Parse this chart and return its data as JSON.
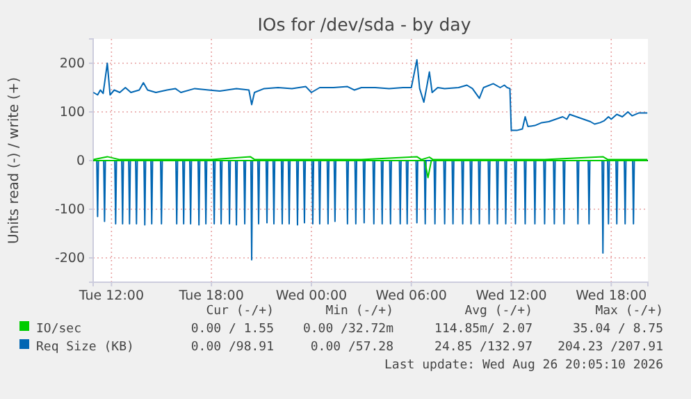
{
  "chart_data": {
    "type": "line",
    "title": "IOs for /dev/sda - by day",
    "ylabel": "Units read (-) / write (+)",
    "xlim": [
      "2026-08-25T10:54",
      "2026-08-26T20:12"
    ],
    "ylim": [
      -250,
      250
    ],
    "xticks": [
      {
        "value": "2026-08-25T12:00",
        "label": "Tue 12:00"
      },
      {
        "value": "2026-08-25T18:00",
        "label": "Tue 18:00"
      },
      {
        "value": "2026-08-26T00:00",
        "label": "Wed 00:00"
      },
      {
        "value": "2026-08-26T06:00",
        "label": "Wed 06:00"
      },
      {
        "value": "2026-08-26T12:00",
        "label": "Wed 12:00"
      },
      {
        "value": "2026-08-26T18:00",
        "label": "Wed 18:00"
      }
    ],
    "yticks": [
      -200,
      -100,
      0,
      100,
      200
    ],
    "grid": true,
    "legend": "bottom",
    "series": [
      {
        "color": "#00cc00",
        "x": [
          "2026-08-25T10:55",
          "2026-08-26T06:48",
          "2026-08-26T07:00",
          "2026-08-26T07:12",
          "2026-08-26T20:10"
        ],
        "values": [
          0,
          0,
          -35,
          0,
          0
        ]
      },
      {
        "name": "IO/sec",
        "color": "#00cc00",
        "x": [
          "2026-08-25T10:55",
          "2026-08-25T11:45",
          "2026-08-25T12:30",
          "2026-08-25T15:00",
          "2026-08-25T18:00",
          "2026-08-25T20:20",
          "2026-08-25T20:36",
          "2026-08-26T00:00",
          "2026-08-26T03:00",
          "2026-08-26T06:20",
          "2026-08-26T06:36",
          "2026-08-26T07:05",
          "2026-08-26T07:18",
          "2026-08-26T10:00",
          "2026-08-26T12:00",
          "2026-08-26T14:00",
          "2026-08-26T17:30",
          "2026-08-26T17:48",
          "2026-08-26T20:10"
        ],
        "values": [
          2,
          8,
          2,
          2,
          2,
          8,
          2,
          2,
          2,
          8,
          2,
          7,
          2,
          2,
          2,
          2,
          8,
          2,
          2
        ]
      },
      {
        "color": "#0066b3",
        "x": [
          "2026-08-25T10:55",
          "2026-08-25T11:07",
          "2026-08-25T11:10",
          "2026-08-25T11:13",
          "2026-08-25T11:32",
          "2026-08-25T11:35",
          "2026-08-25T11:38",
          "2026-08-25T12:12",
          "2026-08-25T12:15",
          "2026-08-25T12:18",
          "2026-08-25T12:37",
          "2026-08-25T12:40",
          "2026-08-25T12:43",
          "2026-08-25T13:02",
          "2026-08-25T13:05",
          "2026-08-25T13:08",
          "2026-08-25T13:27",
          "2026-08-25T13:30",
          "2026-08-25T13:33",
          "2026-08-25T13:57",
          "2026-08-25T14:00",
          "2026-08-25T14:03",
          "2026-08-25T14:22",
          "2026-08-25T14:25",
          "2026-08-25T14:28",
          "2026-08-25T14:57",
          "2026-08-25T15:00",
          "2026-08-25T15:03",
          "2026-08-25T15:52",
          "2026-08-25T15:55",
          "2026-08-25T15:58",
          "2026-08-25T16:17",
          "2026-08-25T16:20",
          "2026-08-25T16:23",
          "2026-08-25T16:42",
          "2026-08-25T16:45",
          "2026-08-25T16:48",
          "2026-08-25T17:12",
          "2026-08-25T17:15",
          "2026-08-25T17:18",
          "2026-08-25T17:37",
          "2026-08-25T17:40",
          "2026-08-25T17:43",
          "2026-08-25T18:07",
          "2026-08-25T18:10",
          "2026-08-25T18:13",
          "2026-08-25T18:32",
          "2026-08-25T18:35",
          "2026-08-25T18:38",
          "2026-08-25T19:02",
          "2026-08-25T19:05",
          "2026-08-25T19:08",
          "2026-08-25T19:27",
          "2026-08-25T19:30",
          "2026-08-25T19:33",
          "2026-08-25T19:57",
          "2026-08-25T20:00",
          "2026-08-25T20:03",
          "2026-08-25T20:22",
          "2026-08-25T20:25",
          "2026-08-25T20:28",
          "2026-08-25T20:47",
          "2026-08-25T20:50",
          "2026-08-25T20:53",
          "2026-08-25T21:17",
          "2026-08-25T21:20",
          "2026-08-25T21:23",
          "2026-08-25T21:42",
          "2026-08-25T21:45",
          "2026-08-25T21:48",
          "2026-08-25T22:12",
          "2026-08-25T22:15",
          "2026-08-25T22:18",
          "2026-08-25T22:37",
          "2026-08-25T22:40",
          "2026-08-25T22:43",
          "2026-08-25T23:07",
          "2026-08-25T23:10",
          "2026-08-25T23:13",
          "2026-08-25T23:32",
          "2026-08-25T23:35",
          "2026-08-25T23:38",
          "2026-08-26T00:02",
          "2026-08-26T00:05",
          "2026-08-26T00:08",
          "2026-08-26T00:27",
          "2026-08-26T00:30",
          "2026-08-26T00:33",
          "2026-08-26T00:57",
          "2026-08-26T01:00",
          "2026-08-26T01:03",
          "2026-08-26T01:22",
          "2026-08-26T01:25",
          "2026-08-26T01:28",
          "2026-08-26T02:07",
          "2026-08-26T02:10",
          "2026-08-26T02:13",
          "2026-08-26T02:37",
          "2026-08-26T02:40",
          "2026-08-26T02:43",
          "2026-08-26T03:07",
          "2026-08-26T03:10",
          "2026-08-26T03:13",
          "2026-08-26T03:42",
          "2026-08-26T03:45",
          "2026-08-26T03:48",
          "2026-08-26T04:12",
          "2026-08-26T04:15",
          "2026-08-26T04:18",
          "2026-08-26T04:42",
          "2026-08-26T04:45",
          "2026-08-26T04:48",
          "2026-08-26T05:17",
          "2026-08-26T05:20",
          "2026-08-26T05:23",
          "2026-08-26T05:42",
          "2026-08-26T05:45",
          "2026-08-26T05:48",
          "2026-08-26T06:17",
          "2026-08-26T06:20",
          "2026-08-26T06:23",
          "2026-08-26T06:47",
          "2026-08-26T06:50",
          "2026-08-26T06:53",
          "2026-08-26T07:22",
          "2026-08-26T07:25",
          "2026-08-26T07:28",
          "2026-08-26T07:57",
          "2026-08-26T08:00",
          "2026-08-26T08:03",
          "2026-08-26T08:27",
          "2026-08-26T08:30",
          "2026-08-26T08:33",
          "2026-08-26T09:02",
          "2026-08-26T09:05",
          "2026-08-26T09:08",
          "2026-08-26T09:32",
          "2026-08-26T09:35",
          "2026-08-26T09:38",
          "2026-08-26T10:02",
          "2026-08-26T10:05",
          "2026-08-26T10:08",
          "2026-08-26T10:37",
          "2026-08-26T10:40",
          "2026-08-26T10:43",
          "2026-08-26T11:07",
          "2026-08-26T11:10",
          "2026-08-26T11:13",
          "2026-08-26T11:37",
          "2026-08-26T11:40",
          "2026-08-26T11:43",
          "2026-08-26T12:12",
          "2026-08-26T12:15",
          "2026-08-26T12:18",
          "2026-08-26T12:47",
          "2026-08-26T12:50",
          "2026-08-26T12:53",
          "2026-08-26T13:22",
          "2026-08-26T13:25",
          "2026-08-26T13:28",
          "2026-08-26T13:57",
          "2026-08-26T14:00",
          "2026-08-26T14:03",
          "2026-08-26T14:32",
          "2026-08-26T14:35",
          "2026-08-26T14:38",
          "2026-08-26T15:07",
          "2026-08-26T15:10",
          "2026-08-26T15:13",
          "2026-08-26T15:57",
          "2026-08-26T16:00",
          "2026-08-26T16:03",
          "2026-08-26T16:37",
          "2026-08-26T16:40",
          "2026-08-26T16:43",
          "2026-08-26T17:27",
          "2026-08-26T17:30",
          "2026-08-26T17:33",
          "2026-08-26T17:47",
          "2026-08-26T17:50",
          "2026-08-26T17:53",
          "2026-08-26T18:17",
          "2026-08-26T18:20",
          "2026-08-26T18:23",
          "2026-08-26T18:47",
          "2026-08-26T18:50",
          "2026-08-26T18:53",
          "2026-08-26T19:17",
          "2026-08-26T19:20",
          "2026-08-26T19:23",
          "2026-08-26T20:10"
        ],
        "values": [
          0,
          0,
          -115,
          0,
          0,
          -125,
          0,
          0,
          -130,
          0,
          0,
          -130,
          0,
          0,
          -130,
          0,
          0,
          -130,
          0,
          0,
          -132,
          0,
          0,
          -130,
          0,
          0,
          -130,
          0,
          0,
          -130,
          0,
          0,
          -130,
          0,
          0,
          -130,
          0,
          0,
          -132,
          0,
          0,
          -130,
          0,
          0,
          -130,
          0,
          0,
          -130,
          0,
          0,
          -130,
          0,
          0,
          -132,
          0,
          0,
          -130,
          0,
          0,
          -204,
          0,
          0,
          -130,
          0,
          0,
          -128,
          0,
          0,
          -130,
          0,
          0,
          -130,
          0,
          0,
          -130,
          0,
          0,
          -132,
          0,
          0,
          -128,
          0,
          0,
          -130,
          0,
          0,
          -130,
          0,
          0,
          -130,
          0,
          0,
          -125,
          0,
          0,
          -130,
          0,
          0,
          -130,
          0,
          0,
          -128,
          0,
          0,
          -130,
          0,
          0,
          -130,
          0,
          0,
          -130,
          0,
          0,
          -130,
          0,
          0,
          -130,
          0,
          0,
          -128,
          0,
          0,
          -130,
          0,
          0,
          -130,
          0,
          0,
          -130,
          0,
          0,
          -130,
          0,
          0,
          -130,
          0,
          0,
          -130,
          0,
          0,
          -130,
          0,
          0,
          -130,
          0,
          0,
          -130,
          0,
          0,
          -130,
          0,
          0,
          -130,
          0,
          0,
          -130,
          0,
          0,
          -130,
          0,
          0,
          -130,
          0,
          0,
          -130,
          0,
          0,
          -130,
          0,
          0,
          -130,
          0,
          0,
          -130,
          0,
          0,
          -190,
          0,
          0,
          -130,
          0,
          0,
          -130,
          0,
          0,
          -130,
          0,
          0,
          -130,
          0,
          0
        ]
      },
      {
        "name": "Req Size (KB)",
        "color": "#0066b3",
        "x": [
          "2026-08-25T10:55",
          "2026-08-25T11:10",
          "2026-08-25T11:20",
          "2026-08-25T11:30",
          "2026-08-25T11:45",
          "2026-08-25T11:55",
          "2026-08-25T12:10",
          "2026-08-25T12:30",
          "2026-08-25T12:50",
          "2026-08-25T13:10",
          "2026-08-25T13:40",
          "2026-08-25T13:55",
          "2026-08-25T14:10",
          "2026-08-25T14:40",
          "2026-08-25T15:20",
          "2026-08-25T15:50",
          "2026-08-25T16:10",
          "2026-08-25T17:00",
          "2026-08-25T17:50",
          "2026-08-25T18:30",
          "2026-08-25T19:30",
          "2026-08-25T20:15",
          "2026-08-25T20:25",
          "2026-08-25T20:35",
          "2026-08-25T21:10",
          "2026-08-25T22:00",
          "2026-08-25T22:50",
          "2026-08-25T23:40",
          "2026-08-26T00:00",
          "2026-08-26T00:30",
          "2026-08-26T01:20",
          "2026-08-26T02:10",
          "2026-08-26T02:35",
          "2026-08-26T03:00",
          "2026-08-26T03:50",
          "2026-08-26T04:40",
          "2026-08-26T05:30",
          "2026-08-26T06:00",
          "2026-08-26T06:20",
          "2026-08-26T06:30",
          "2026-08-26T06:45",
          "2026-08-26T06:55",
          "2026-08-26T07:05",
          "2026-08-26T07:15",
          "2026-08-26T07:35",
          "2026-08-26T08:00",
          "2026-08-26T08:50",
          "2026-08-26T09:20",
          "2026-08-26T09:40",
          "2026-08-26T10:05",
          "2026-08-26T10:20",
          "2026-08-26T10:55",
          "2026-08-26T11:20",
          "2026-08-26T11:35",
          "2026-08-26T11:45",
          "2026-08-26T11:55",
          "2026-08-26T12:00",
          "2026-08-26T12:20",
          "2026-08-26T12:40",
          "2026-08-26T12:50",
          "2026-08-26T13:00",
          "2026-08-26T13:25",
          "2026-08-26T13:50",
          "2026-08-26T14:15",
          "2026-08-26T14:40",
          "2026-08-26T15:05",
          "2026-08-26T15:20",
          "2026-08-26T15:30",
          "2026-08-26T15:55",
          "2026-08-26T16:20",
          "2026-08-26T16:45",
          "2026-08-26T17:00",
          "2026-08-26T17:20",
          "2026-08-26T17:35",
          "2026-08-26T17:50",
          "2026-08-26T18:00",
          "2026-08-26T18:20",
          "2026-08-26T18:40",
          "2026-08-26T19:00",
          "2026-08-26T19:15",
          "2026-08-26T19:40",
          "2026-08-26T20:10"
        ],
        "values": [
          140,
          135,
          145,
          138,
          200,
          135,
          145,
          140,
          150,
          140,
          145,
          160,
          145,
          140,
          145,
          148,
          140,
          148,
          145,
          143,
          148,
          145,
          115,
          140,
          148,
          150,
          148,
          152,
          140,
          150,
          150,
          152,
          145,
          150,
          150,
          148,
          150,
          150,
          207,
          148,
          120,
          150,
          182,
          140,
          150,
          148,
          150,
          155,
          148,
          128,
          150,
          158,
          150,
          155,
          150,
          148,
          62,
          62,
          65,
          90,
          70,
          72,
          78,
          80,
          85,
          90,
          85,
          95,
          90,
          85,
          80,
          75,
          78,
          82,
          90,
          85,
          95,
          90,
          100,
          92,
          98,
          98
        ]
      }
    ],
    "annotations": [
      "Cur (-/+)",
      "Min (-/+)",
      "Avg (-/+)",
      "Max (-/+)",
      "0.00 / 1.55",
      "0.00 /32.72m",
      "114.85m/ 2.07",
      "35.04 / 8.75",
      "0.00 /98.91",
      "0.00 /57.28",
      "24.85 /132.97",
      "204.23 /207.91",
      "Last update: Wed Aug 26 20:05:10 2026"
    ]
  }
}
